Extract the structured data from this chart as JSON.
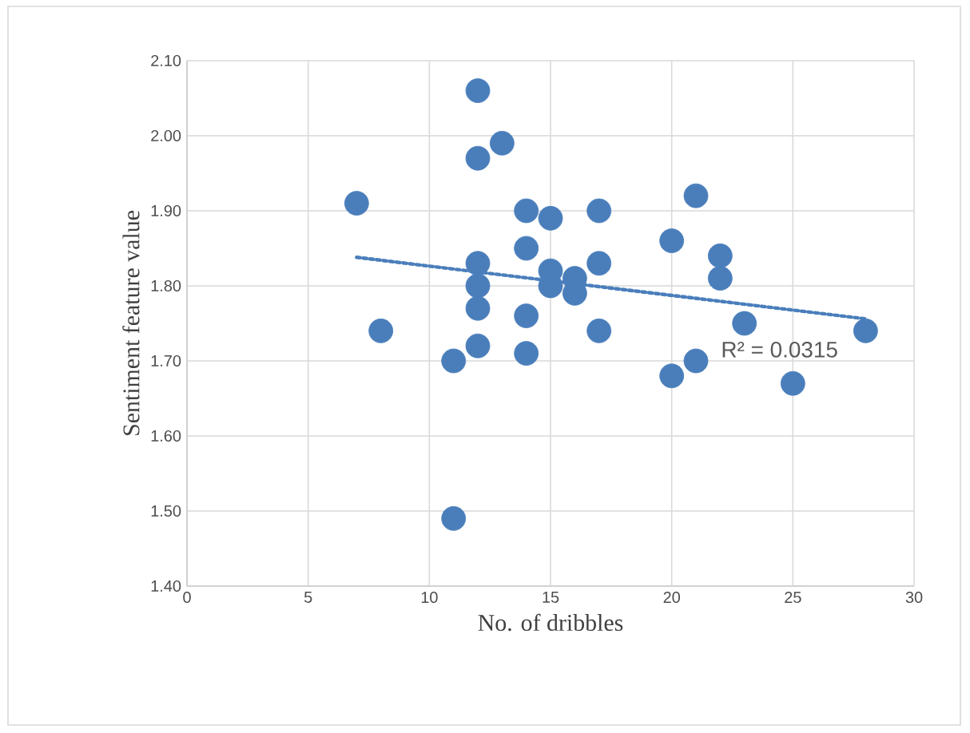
{
  "chart_data": {
    "type": "scatter",
    "xlabel": "No. of dribbles",
    "ylabel": "Sentiment feature value",
    "xlim": [
      0,
      30
    ],
    "xticks": [
      0,
      5,
      10,
      15,
      20,
      25,
      30
    ],
    "ylim": [
      1.4,
      2.1
    ],
    "yticks": [
      {
        "value": 1.4,
        "label": "1.40"
      },
      {
        "value": 1.5,
        "label": "1.50"
      },
      {
        "value": 1.6,
        "label": "1.60"
      },
      {
        "value": 1.7,
        "label": "1.70"
      },
      {
        "value": 1.8,
        "label": "1.80"
      },
      {
        "value": 1.9,
        "label": "1.90"
      },
      {
        "value": 2.0,
        "label": "2.00"
      },
      {
        "value": 2.1,
        "label": "2.10"
      }
    ],
    "grid": true,
    "series": [
      {
        "marker": "circle",
        "color": "#4a7ebb",
        "x": [
          7,
          8,
          11,
          11,
          12,
          12,
          12,
          12,
          12,
          12,
          13,
          14,
          14,
          14,
          14,
          15,
          15,
          15,
          16,
          16,
          17,
          17,
          17,
          20,
          20,
          21,
          21,
          22,
          22,
          23,
          25,
          28
        ],
        "values": [
          1.91,
          1.74,
          1.7,
          1.49,
          2.06,
          1.97,
          1.83,
          1.8,
          1.77,
          1.72,
          1.99,
          1.9,
          1.85,
          1.76,
          1.71,
          1.89,
          1.82,
          1.8,
          1.81,
          1.79,
          1.9,
          1.83,
          1.74,
          1.86,
          1.68,
          1.92,
          1.7,
          1.84,
          1.81,
          1.75,
          1.67,
          1.74
        ]
      },
      {
        "type": "line",
        "color": "#4a7ebb",
        "line_style": "dotted",
        "marker": "none",
        "x": [
          7,
          28
        ],
        "values": [
          1.838,
          1.756
        ]
      }
    ],
    "annotations": [
      "R² = 0.0315"
    ]
  }
}
